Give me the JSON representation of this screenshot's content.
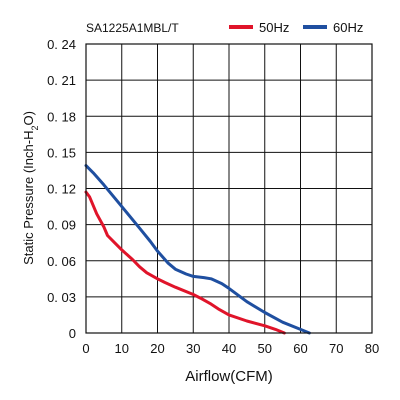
{
  "chart_data": {
    "type": "line",
    "model_label": "SA1225A1MBL/T",
    "xlabel": "Airflow(CFM)",
    "ylabel_parts": [
      "Static Pressure (Inch-H",
      "2",
      "O)"
    ],
    "xlim": [
      0,
      80
    ],
    "ylim": [
      0,
      0.24
    ],
    "x_ticks": [
      0,
      10,
      20,
      30,
      40,
      50,
      60,
      70,
      80
    ],
    "y_ticks": [
      0,
      0.03,
      0.06,
      0.09,
      0.12,
      0.15,
      0.18,
      0.21,
      0.24
    ],
    "x_tick_labels": [
      "0",
      "10",
      "20",
      "30",
      "40",
      "50",
      "60",
      "70",
      "80"
    ],
    "y_tick_labels": [
      "0",
      "0. 03",
      "0. 06",
      "0. 09",
      "0. 12",
      "0. 15",
      "0. 18",
      "0. 21",
      "0. 24"
    ],
    "grid": true,
    "legend_position": "top-right",
    "series": [
      {
        "name": "50Hz",
        "color": "#e0142a",
        "points": [
          [
            0,
            0.117
          ],
          [
            1,
            0.113
          ],
          [
            3,
            0.099
          ],
          [
            5,
            0.088
          ],
          [
            6,
            0.081
          ],
          [
            8,
            0.075
          ],
          [
            10,
            0.069
          ],
          [
            13,
            0.061
          ],
          [
            15,
            0.055
          ],
          [
            17,
            0.05
          ],
          [
            20,
            0.045
          ],
          [
            22,
            0.042
          ],
          [
            25,
            0.038
          ],
          [
            30,
            0.032
          ],
          [
            32,
            0.029
          ],
          [
            35,
            0.024
          ],
          [
            37,
            0.02
          ],
          [
            40,
            0.015
          ],
          [
            45,
            0.01
          ],
          [
            50,
            0.006
          ],
          [
            53,
            0.003
          ],
          [
            55.5,
            0.0
          ]
        ]
      },
      {
        "name": "60Hz",
        "color": "#1f4fa0",
        "points": [
          [
            0,
            0.139
          ],
          [
            2,
            0.133
          ],
          [
            5,
            0.123
          ],
          [
            10,
            0.105
          ],
          [
            15,
            0.087
          ],
          [
            18,
            0.076
          ],
          [
            20,
            0.068
          ],
          [
            23,
            0.058
          ],
          [
            25,
            0.053
          ],
          [
            28,
            0.049
          ],
          [
            30,
            0.047
          ],
          [
            33,
            0.046
          ],
          [
            35,
            0.045
          ],
          [
            38,
            0.041
          ],
          [
            40,
            0.037
          ],
          [
            45,
            0.026
          ],
          [
            50,
            0.017
          ],
          [
            55,
            0.009
          ],
          [
            60,
            0.003
          ],
          [
            62.5,
            0.0
          ]
        ]
      }
    ]
  }
}
